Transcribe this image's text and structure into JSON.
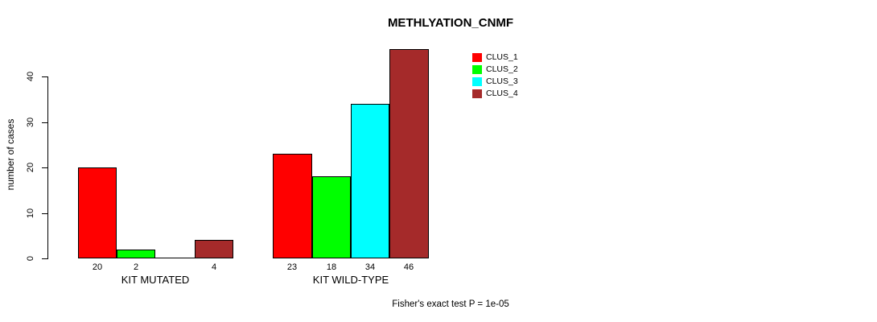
{
  "title": "METHLYATION_CNMF",
  "y_axis": {
    "label": "number of cases",
    "ticks": [
      0,
      10,
      20,
      30,
      40
    ]
  },
  "footer": "Fisher's exact test P = 1e-05",
  "legend": {
    "position": "top-right",
    "entries": [
      {
        "label": "CLUS_1",
        "color": "#ff0000"
      },
      {
        "label": "CLUS_2",
        "color": "#00ff00"
      },
      {
        "label": "CLUS_3",
        "color": "#00ffff"
      },
      {
        "label": "CLUS_4",
        "color": "#a52a2a"
      }
    ]
  },
  "chart_data": {
    "type": "bar",
    "title": "METHLYATION_CNMF",
    "ylabel": "number of cases",
    "xlabel": "",
    "categories": [
      "KIT MUTATED",
      "KIT WILD-TYPE"
    ],
    "series": [
      {
        "name": "CLUS_1",
        "color": "#ff0000",
        "values": [
          20,
          23
        ]
      },
      {
        "name": "CLUS_2",
        "color": "#00ff00",
        "values": [
          2,
          18
        ]
      },
      {
        "name": "CLUS_3",
        "color": "#00ffff",
        "values": [
          0,
          34
        ]
      },
      {
        "name": "CLUS_4",
        "color": "#a52a2a",
        "values": [
          4,
          46
        ]
      }
    ],
    "yticks": [
      0,
      10,
      20,
      30,
      40
    ],
    "ylim": [
      0,
      46
    ],
    "grid": false,
    "bar_value_labels": true,
    "zero_value_labels_hidden": true,
    "legend_position": "top-right",
    "annotation": "Fisher's exact test P = 1e-05"
  }
}
